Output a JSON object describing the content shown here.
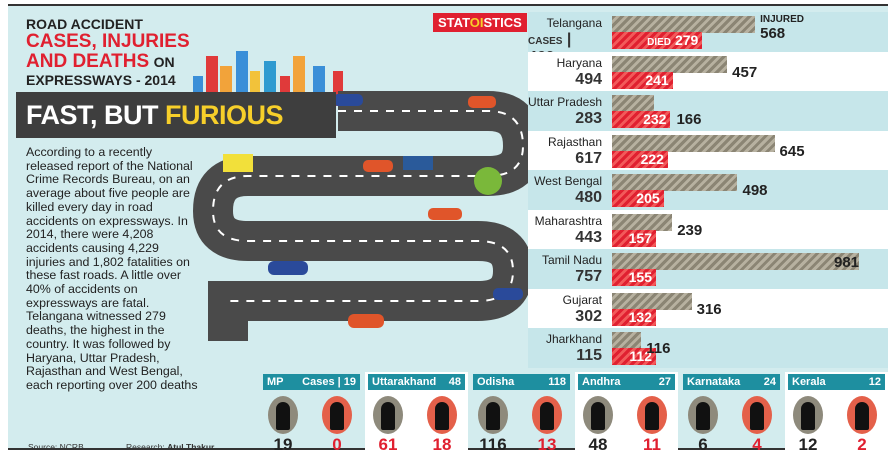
{
  "header": {
    "line1": "ROAD ACCIDENT",
    "line2": "CASES, INJURIES",
    "line3": "AND DEATHS",
    "line3b": "ON",
    "line4": "EXPRESSWAYS - 2014",
    "banner_white": "FAST, BUT",
    "banner_yellow": "FURIOUS",
    "logo_a": "STAT",
    "logo_b": "OI",
    "logo_c": "STICS"
  },
  "blurb": "According to a recently released report of the National Crime Records Bureau, on an average about five people are killed every day in road accidents on expressways. In 2014, there were 4,208 accidents causing 4,229 injuries and 1,802 fatalities on these fast roads. A little over 40% of accidents on expressways are fatal. Telangana witnessed 279 deaths, the highest in the country. It was followed by Haryana, Uttar Pradesh, Rajasthan and West Bengal, each reporting over 200 deaths",
  "footer": {
    "source": "Source: NCRB",
    "research_label": "Research:",
    "research_name": "Atul Thakur"
  },
  "chart_data": {
    "type": "bar",
    "categories": [
      "Telangana",
      "Haryana",
      "Uttar Pradesh",
      "Rajasthan",
      "West Bengal",
      "Maharashtra",
      "Tamil Nadu",
      "Gujarat",
      "Jharkhand"
    ],
    "cases": [
      469,
      494,
      283,
      617,
      480,
      443,
      757,
      302,
      115
    ],
    "series": [
      {
        "name": "INJURED",
        "values": [
          568,
          457,
          166,
          645,
          498,
          239,
          981,
          316,
          116
        ],
        "color": "#9a9484"
      },
      {
        "name": "DIED",
        "values": [
          279,
          241,
          232,
          222,
          205,
          157,
          155,
          132,
          112
        ],
        "color": "#e02030"
      }
    ],
    "cases_label": "CASES",
    "injured_label": "INJURED",
    "died_label": "DIED"
  },
  "small_states": [
    {
      "name": "MP",
      "cases_label": "Cases | 19",
      "injured": 19,
      "died": 0,
      "injured_color": "#222"
    },
    {
      "name": "Uttarakhand",
      "cases_label": "48",
      "injured": 61,
      "died": 18,
      "injured_color": "#e02030"
    },
    {
      "name": "Odisha",
      "cases_label": "118",
      "injured": 116,
      "died": 13,
      "injured_color": "#222"
    },
    {
      "name": "Andhra",
      "cases_label": "27",
      "injured": 48,
      "died": 11,
      "injured_color": "#222"
    },
    {
      "name": "Karnataka",
      "cases_label": "24",
      "injured": 6,
      "died": 4,
      "injured_color": "#222"
    },
    {
      "name": "Kerala",
      "cases_label": "12",
      "injured": 12,
      "died": 2,
      "injured_color": "#222"
    }
  ]
}
